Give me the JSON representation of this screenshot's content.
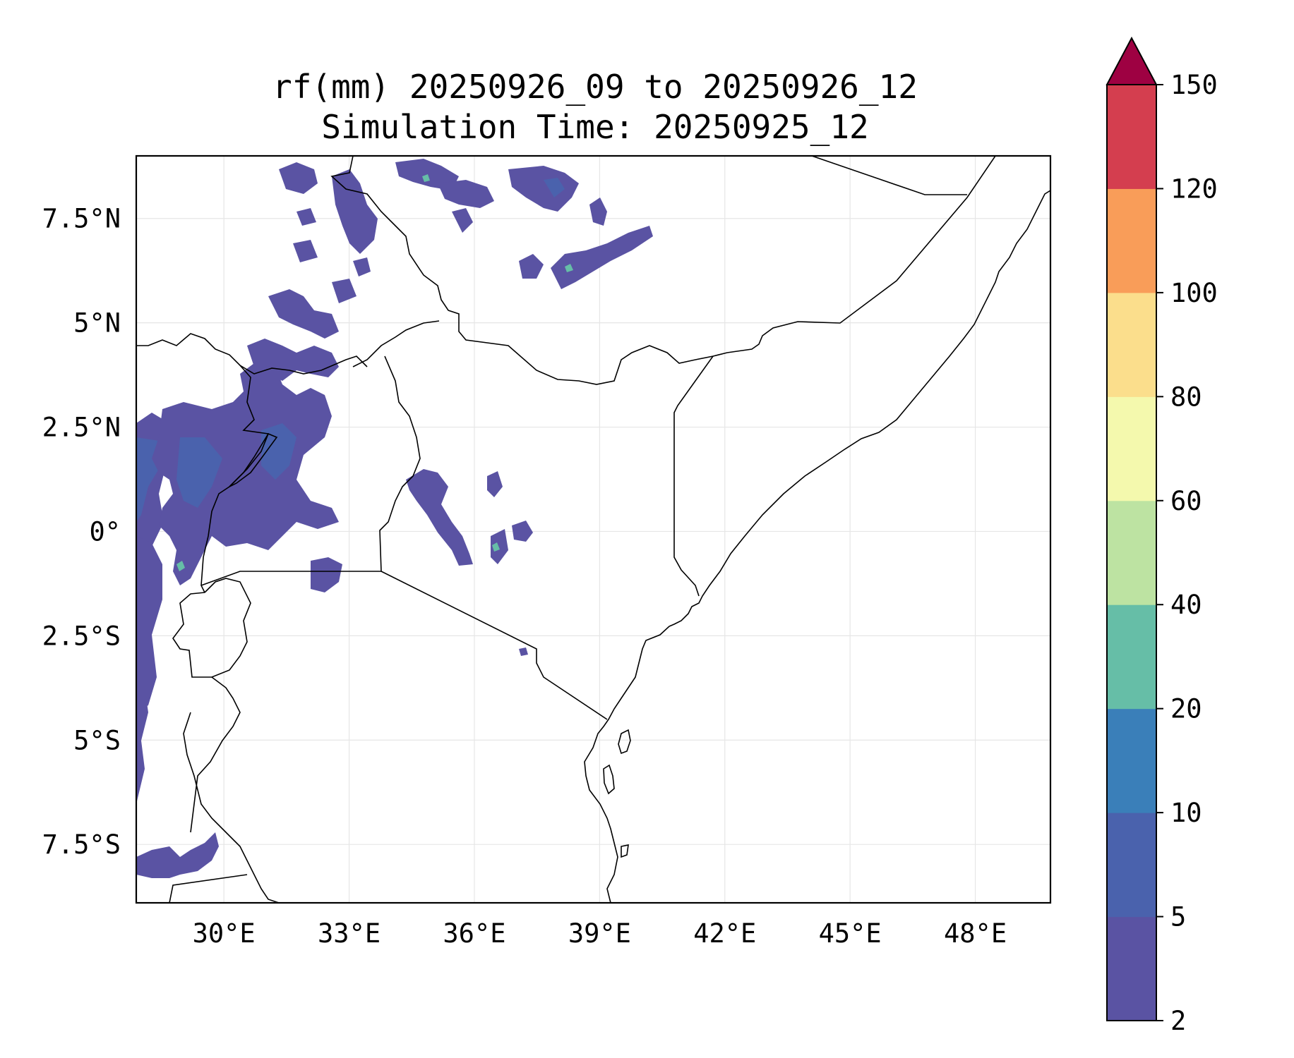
{
  "title": {
    "line1": "rf(mm) 20250926_09 to 20250926_12",
    "line2": "Simulation Time: 20250925_12"
  },
  "map": {
    "lon_range": [
      27.9,
      49.8
    ],
    "lat_range": [
      -8.9,
      9.0
    ],
    "x_ticks": [
      {
        "lon": 30,
        "label": "30°E"
      },
      {
        "lon": 33,
        "label": "33°E"
      },
      {
        "lon": 36,
        "label": "36°E"
      },
      {
        "lon": 39,
        "label": "39°E"
      },
      {
        "lon": 42,
        "label": "42°E"
      },
      {
        "lon": 45,
        "label": "45°E"
      },
      {
        "lon": 48,
        "label": "48°E"
      }
    ],
    "y_ticks": [
      {
        "lat": 7.5,
        "label": "7.5°N"
      },
      {
        "lat": 5,
        "label": "5°N"
      },
      {
        "lat": 2.5,
        "label": "2.5°N"
      },
      {
        "lat": 0,
        "label": "0°"
      },
      {
        "lat": -2.5,
        "label": "2.5°S"
      },
      {
        "lat": -5,
        "label": "5°S"
      },
      {
        "lat": -7.5,
        "label": "7.5°S"
      }
    ]
  },
  "colorbar": {
    "levels": [
      "2",
      "5",
      "10",
      "20",
      "40",
      "60",
      "80",
      "100",
      "120",
      "150"
    ],
    "colors": [
      "#5a53a3",
      "#4a62ad",
      "#3a7fb9",
      "#66bea7",
      "#bde3a2",
      "#f4f9ad",
      "#fbde8c",
      "#f99d59",
      "#d43e4f"
    ],
    "extend_color": "#9e0142"
  },
  "colors": {
    "rain_light": "#5a53a3",
    "rain_mid": "#4a62ad",
    "rain_heavy": "#3a7fb9",
    "rain_peak": "#66bea7"
  }
}
